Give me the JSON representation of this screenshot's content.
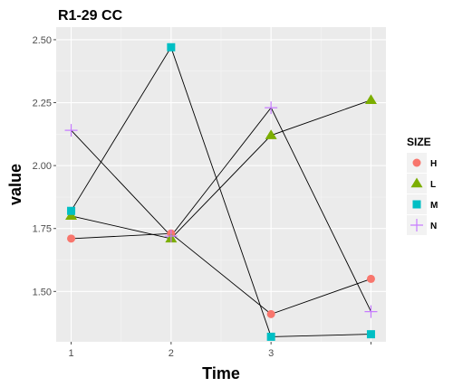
{
  "chart_data": {
    "type": "line",
    "title": "R1-29 CC",
    "xlabel": "Time",
    "ylabel": "value",
    "x": [
      1,
      2,
      3,
      4
    ],
    "x_tick_labels": [
      "1",
      "2",
      "3",
      ""
    ],
    "y_ticks": [
      "1.50",
      "1.75",
      "2.00",
      "2.25",
      "2.50"
    ],
    "xlim": [
      0.85,
      4.15
    ],
    "ylim": [
      1.3,
      2.55
    ],
    "grid": true,
    "legend": {
      "title": "SIZE",
      "position": "right"
    },
    "series": [
      {
        "name": "H",
        "shape": "circle",
        "color": "#f8766d",
        "values": [
          1.71,
          1.73,
          1.41,
          1.55
        ]
      },
      {
        "name": "L",
        "shape": "triangle",
        "color": "#7cae00",
        "values": [
          1.8,
          1.71,
          2.12,
          2.26
        ]
      },
      {
        "name": "M",
        "shape": "square",
        "color": "#00bfc4",
        "values": [
          1.82,
          2.47,
          1.32,
          1.33
        ]
      },
      {
        "name": "N",
        "shape": "plus",
        "color": "#c77cff",
        "values": [
          2.14,
          1.72,
          2.23,
          1.42
        ]
      }
    ]
  }
}
